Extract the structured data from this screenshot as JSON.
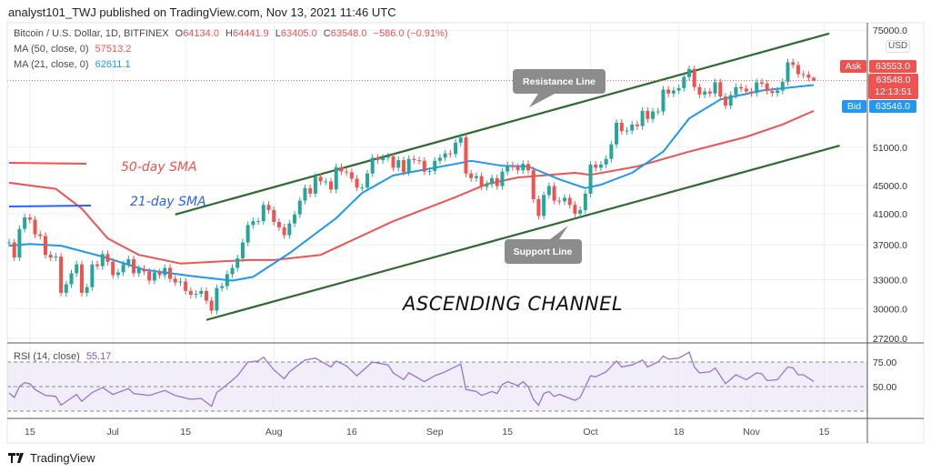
{
  "header": {
    "publisher_text": "analyst101_TWJ published on TradingView.com, Nov 13, 2021 11:46 UTC"
  },
  "legend": {
    "symbol": "Bitcoin / U.S. Dollar, 1D, BITFINEX",
    "o_label": "O",
    "o": "64134.0",
    "h_label": "H",
    "h": "64441.9",
    "l_label": "L",
    "l": "63405.0",
    "c_label": "C",
    "c": "63548.0",
    "change": "−586.0 (−0.91%)",
    "ma50_label": "MA (50, close, 0)",
    "ma50_value": "57513.2",
    "ma21_label": "MA (21, close, 0)",
    "ma21_value": "62611.1",
    "rsi_label": "RSI (14, close)",
    "rsi_value": "55.17"
  },
  "price_axis": {
    "currency": "USD",
    "ticks": [
      "75000.0",
      "51000.0",
      "45000.0",
      "41000.0",
      "37000.0",
      "33000.0",
      "30000.0",
      "27200.0"
    ],
    "scale": "log",
    "ask_label": "Ask",
    "ask": "63553.0",
    "last": "63548.0",
    "countdown": "12:13:51",
    "bid_label": "Bid",
    "bid": "63546.0"
  },
  "rsi_axis": {
    "ticks": [
      "75.00",
      "50.00"
    ],
    "bands": [
      75,
      50,
      25
    ]
  },
  "date_axis": {
    "ticks": [
      {
        "label": "15",
        "date": "2021-06-15"
      },
      {
        "label": "Jul",
        "date": "2021-07-01"
      },
      {
        "label": "15",
        "date": "2021-07-15"
      },
      {
        "label": "Aug",
        "date": "2021-08-01"
      },
      {
        "label": "16",
        "date": "2021-08-16"
      },
      {
        "label": "Sep",
        "date": "2021-09-01"
      },
      {
        "label": "15",
        "date": "2021-09-15"
      },
      {
        "label": "Oct",
        "date": "2021-10-01"
      },
      {
        "label": "18",
        "date": "2021-10-18"
      },
      {
        "label": "Nov",
        "date": "2021-11-01"
      },
      {
        "label": "15",
        "date": "2021-11-15"
      }
    ]
  },
  "annotations": {
    "sma50_label": "50-day SMA",
    "sma21_label": "21-day SMA",
    "resistance_label": "Resistance Line",
    "support_label": "Support Line",
    "channel_title": "ASCENDING CHANNEL"
  },
  "colors": {
    "up": "#26a69a",
    "down": "#ef5350",
    "ma50": "#ef5350",
    "ma21": "#2196f3",
    "rsi": "#9575cd",
    "channel": "#2e6b2e",
    "callout": "#8c8c8c",
    "bid": "#2196f3",
    "ask": "#ef5350"
  },
  "branding": {
    "logo_text": "TradingView"
  },
  "chart_data": {
    "type": "candlestick",
    "title": "Bitcoin / U.S. Dollar, 1D, BITFINEX",
    "y_scale": "log",
    "ylim": [
      27200,
      75000
    ],
    "grid": true,
    "candles_by_month": [
      {
        "month": "2021-06",
        "first_day": 11,
        "close": [
          37300,
          35500,
          39000,
          40500,
          40200,
          38300,
          38100,
          35800,
          35500,
          35600,
          31600,
          32500,
          33700,
          34700,
          31600,
          32200,
          34700,
          34500,
          35900,
          35000
        ]
      },
      {
        "month": "2021-07",
        "first_day": 1,
        "close": [
          33500,
          33800,
          34700,
          35300,
          33700,
          34200,
          33900,
          32900,
          33800,
          33500,
          34300,
          33100,
          32700,
          32800,
          31800,
          31400,
          31500,
          31800,
          30800,
          29800,
          32100,
          32300,
          33600,
          34300,
          35400,
          37300,
          39500,
          40000,
          40000,
          42200,
          41500
        ]
      },
      {
        "month": "2021-08",
        "first_day": 1,
        "close": [
          39900,
          39200,
          38200,
          39700,
          40900,
          42800,
          44600,
          43800,
          46300,
          45600,
          45600,
          44400,
          47800,
          47100,
          47000,
          46000,
          44700,
          44700,
          46800,
          49300,
          48900,
          49300,
          49500,
          47700,
          48900,
          47000,
          49100,
          48900,
          48800,
          47100,
          47200
        ]
      },
      {
        "month": "2021-09",
        "first_day": 1,
        "close": [
          48800,
          49300,
          50000,
          49900,
          51800,
          52700,
          46800,
          46100,
          46400,
          44800,
          45200,
          46100,
          44900,
          47100,
          48100,
          47800,
          47300,
          48300,
          47300,
          43000,
          40700,
          43600,
          44900,
          42800,
          42700,
          43200,
          42200,
          41000,
          41500,
          43800
        ]
      },
      {
        "month": "2021-10",
        "first_day": 1,
        "close": [
          48200,
          47700,
          48200,
          49100,
          51500,
          55300,
          53800,
          53900,
          55000,
          54700,
          57500,
          56000,
          57400,
          57400,
          61700,
          60900,
          61500,
          62000,
          64300,
          66000,
          62200,
          60700,
          61300,
          60900,
          63200,
          60300,
          58500,
          60600,
          62200,
          61900,
          61300
        ]
      },
      {
        "month": "2021-11",
        "first_day": 1,
        "close": [
          61000,
          63200,
          62900,
          61400,
          61000,
          61500,
          63300,
          67500,
          66900,
          64900,
          64800,
          64134,
          63548
        ]
      }
    ],
    "ma50": [
      [
        "2021-06-11",
        45400
      ],
      [
        "2021-06-20",
        44500
      ],
      [
        "2021-06-25",
        41700
      ],
      [
        "2021-06-30",
        37800
      ],
      [
        "2021-07-06",
        35800
      ],
      [
        "2021-07-14",
        34800
      ],
      [
        "2021-07-27",
        35200
      ],
      [
        "2021-08-01",
        35200
      ],
      [
        "2021-08-10",
        35800
      ],
      [
        "2021-08-24",
        40000
      ],
      [
        "2021-09-05",
        43300
      ],
      [
        "2021-09-11",
        45200
      ],
      [
        "2021-09-17",
        46200
      ],
      [
        "2021-09-28",
        46900
      ],
      [
        "2021-10-01",
        46600
      ],
      [
        "2021-10-10",
        47900
      ],
      [
        "2021-10-20",
        50300
      ],
      [
        "2021-10-31",
        52800
      ],
      [
        "2021-11-07",
        55000
      ],
      [
        "2021-11-13",
        57513.2
      ]
    ],
    "ma21": [
      [
        "2021-06-11",
        36900
      ],
      [
        "2021-06-15",
        37100
      ],
      [
        "2021-06-21",
        36900
      ],
      [
        "2021-06-29",
        35600
      ],
      [
        "2021-07-07",
        34100
      ],
      [
        "2021-07-16",
        33400
      ],
      [
        "2021-07-24",
        32900
      ],
      [
        "2021-07-28",
        33300
      ],
      [
        "2021-08-04",
        36000
      ],
      [
        "2021-08-13",
        40400
      ],
      [
        "2021-08-18",
        43900
      ],
      [
        "2021-08-24",
        46500
      ],
      [
        "2021-08-30",
        47400
      ],
      [
        "2021-09-05",
        48300
      ],
      [
        "2021-09-08",
        48800
      ],
      [
        "2021-09-14",
        48000
      ],
      [
        "2021-09-19",
        47900
      ],
      [
        "2021-09-25",
        45900
      ],
      [
        "2021-09-30",
        44600
      ],
      [
        "2021-10-03",
        45100
      ],
      [
        "2021-10-09",
        46900
      ],
      [
        "2021-10-15",
        50300
      ],
      [
        "2021-10-20",
        56100
      ],
      [
        "2021-10-26",
        59700
      ],
      [
        "2021-11-03",
        61500
      ],
      [
        "2021-11-13",
        62611.1
      ]
    ],
    "rsi": [
      [
        "2021-06-11",
        43.5
      ],
      [
        "2021-06-12",
        39
      ],
      [
        "2021-06-13",
        50
      ],
      [
        "2021-06-14",
        54
      ],
      [
        "2021-06-15",
        53
      ],
      [
        "2021-06-16",
        47
      ],
      [
        "2021-06-18",
        41
      ],
      [
        "2021-06-20",
        40
      ],
      [
        "2021-06-21",
        31
      ],
      [
        "2021-06-24",
        42
      ],
      [
        "2021-06-25",
        35
      ],
      [
        "2021-06-27",
        44
      ],
      [
        "2021-06-29",
        49
      ],
      [
        "2021-07-01",
        42
      ],
      [
        "2021-07-04",
        48
      ],
      [
        "2021-07-05",
        43
      ],
      [
        "2021-07-08",
        41
      ],
      [
        "2021-07-11",
        46
      ],
      [
        "2021-07-13",
        41
      ],
      [
        "2021-07-16",
        37
      ],
      [
        "2021-07-18",
        38
      ],
      [
        "2021-07-20",
        30
      ],
      [
        "2021-07-21",
        44
      ],
      [
        "2021-07-23",
        52
      ],
      [
        "2021-07-25",
        61
      ],
      [
        "2021-07-27",
        75
      ],
      [
        "2021-07-29",
        76
      ],
      [
        "2021-07-30",
        80
      ],
      [
        "2021-08-01",
        67
      ],
      [
        "2021-08-03",
        58
      ],
      [
        "2021-08-04",
        65
      ],
      [
        "2021-08-07",
        77
      ],
      [
        "2021-08-09",
        79
      ],
      [
        "2021-08-12",
        70
      ],
      [
        "2021-08-13",
        76
      ],
      [
        "2021-08-15",
        71
      ],
      [
        "2021-08-17",
        61
      ],
      [
        "2021-08-20",
        75
      ],
      [
        "2021-08-23",
        72
      ],
      [
        "2021-08-24",
        64
      ],
      [
        "2021-08-26",
        57
      ],
      [
        "2021-08-27",
        64
      ],
      [
        "2021-08-30",
        55
      ],
      [
        "2021-09-01",
        61
      ],
      [
        "2021-09-03",
        65
      ],
      [
        "2021-09-06",
        73
      ],
      [
        "2021-09-07",
        47
      ],
      [
        "2021-09-09",
        45
      ],
      [
        "2021-09-10",
        41
      ],
      [
        "2021-09-12",
        45
      ],
      [
        "2021-09-13",
        43
      ],
      [
        "2021-09-14",
        52
      ],
      [
        "2021-09-15",
        55
      ],
      [
        "2021-09-17",
        51
      ],
      [
        "2021-09-18",
        55
      ],
      [
        "2021-09-19",
        50
      ],
      [
        "2021-09-20",
        37
      ],
      [
        "2021-09-21",
        31
      ],
      [
        "2021-09-22",
        43
      ],
      [
        "2021-09-23",
        45
      ],
      [
        "2021-09-24",
        40
      ],
      [
        "2021-09-25",
        42
      ],
      [
        "2021-09-28",
        36
      ],
      [
        "2021-09-29",
        39
      ],
      [
        "2021-10-01",
        61
      ],
      [
        "2021-10-02",
        60
      ],
      [
        "2021-10-04",
        65
      ],
      [
        "2021-10-06",
        76
      ],
      [
        "2021-10-07",
        70
      ],
      [
        "2021-10-09",
        72
      ],
      [
        "2021-10-11",
        77
      ],
      [
        "2021-10-12",
        70
      ],
      [
        "2021-10-14",
        75
      ],
      [
        "2021-10-15",
        81
      ],
      [
        "2021-10-16",
        78
      ],
      [
        "2021-10-18",
        79
      ],
      [
        "2021-10-20",
        85
      ],
      [
        "2021-10-21",
        70
      ],
      [
        "2021-10-22",
        64
      ],
      [
        "2021-10-24",
        65
      ],
      [
        "2021-10-25",
        69
      ],
      [
        "2021-10-26",
        61
      ],
      [
        "2021-10-27",
        53
      ],
      [
        "2021-10-29",
        62
      ],
      [
        "2021-10-31",
        57
      ],
      [
        "2021-11-02",
        64
      ],
      [
        "2021-11-03",
        63
      ],
      [
        "2021-11-04",
        56
      ],
      [
        "2021-11-06",
        57
      ],
      [
        "2021-11-08",
        70
      ],
      [
        "2021-11-09",
        69
      ],
      [
        "2021-11-10",
        62
      ],
      [
        "2021-11-11",
        62
      ],
      [
        "2021-11-13",
        55.17
      ]
    ],
    "resistance_line": [
      [
        "2021-07-13",
        40900
      ],
      [
        "2021-11-16",
        74200
      ]
    ],
    "support_line": [
      [
        "2021-07-19",
        28900
      ],
      [
        "2021-11-18",
        51300
      ]
    ]
  }
}
